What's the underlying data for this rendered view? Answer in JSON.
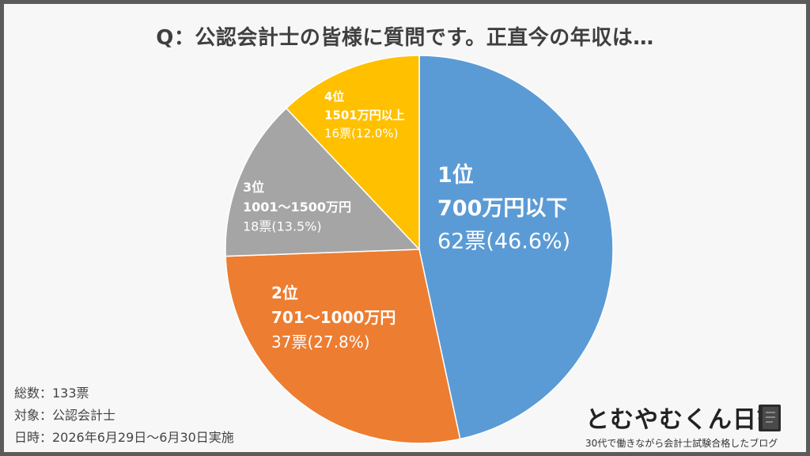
{
  "title": "Q：公認会計士の皆様に質問です。正直今の年収は…",
  "chart_data": {
    "type": "pie",
    "title": "Q：公認会計士の皆様に質問です。正直今の年収は…",
    "slices": [
      {
        "rank": "1位",
        "label": "700万円以下",
        "votes_text": "62票(46.6%)",
        "votes": 62,
        "percent": 46.6,
        "color": "#5b9bd5"
      },
      {
        "rank": "2位",
        "label": "701～1000万円",
        "votes_text": "37票(27.8%)",
        "votes": 37,
        "percent": 27.8,
        "color": "#ed7d31"
      },
      {
        "rank": "3位",
        "label": "1001～1500万円",
        "votes_text": "18票(13.5%)",
        "votes": 18,
        "percent": 13.5,
        "color": "#a5a5a5"
      },
      {
        "rank": "4位",
        "label": "1501万円以上",
        "votes_text": "16票(12.0%)",
        "votes": 16,
        "percent": 12.0,
        "color": "#ffc000"
      }
    ]
  },
  "meta": {
    "total": "総数：133票",
    "target": "対象：公認会計士",
    "date": "日時：2026年6月29日～6月30日実施"
  },
  "brand": {
    "name": "とむやむくん日記",
    "tagline": "30代で働きながら会計士試験合格したブログ"
  }
}
